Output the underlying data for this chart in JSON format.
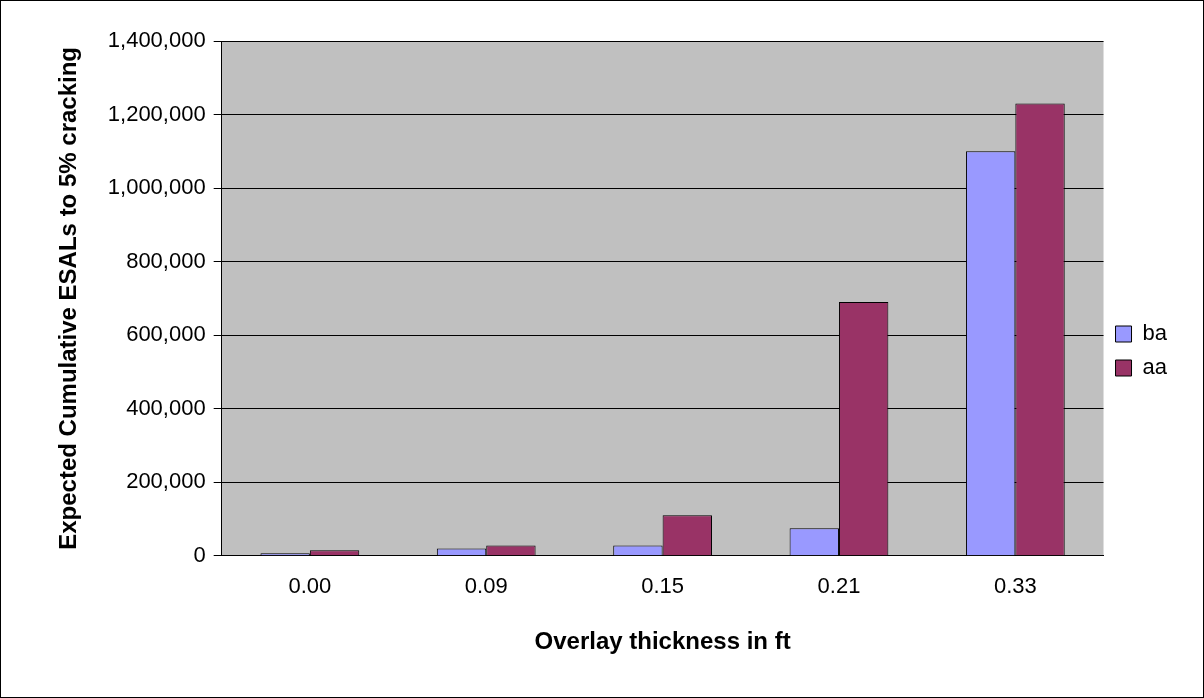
{
  "chart_data": {
    "type": "bar",
    "xlabel": "Overlay thickness in ft",
    "ylabel": "Expected Cumulative ESALs to 5% cracking",
    "categories": [
      "0.00",
      "0.09",
      "0.15",
      "0.21",
      "0.33"
    ],
    "series": [
      {
        "name": "ba",
        "color": "#9999ff",
        "values": [
          7000,
          20000,
          28000,
          75000,
          1100000
        ]
      },
      {
        "name": "aa",
        "color": "#993366",
        "values": [
          15000,
          28000,
          110000,
          690000,
          1230000
        ]
      }
    ],
    "ylim": [
      0,
      1400000
    ],
    "yticks": [
      {
        "value": 0,
        "label": "0"
      },
      {
        "value": 200000,
        "label": "200,000"
      },
      {
        "value": 400000,
        "label": "400,000"
      },
      {
        "value": 600000,
        "label": "600,000"
      },
      {
        "value": 800000,
        "label": "800,000"
      },
      {
        "value": 1000000,
        "label": "1,000,000"
      },
      {
        "value": 1200000,
        "label": "1,200,000"
      },
      {
        "value": 1400000,
        "label": "1,400,000"
      }
    ],
    "grid": "y",
    "legend": "right"
  }
}
